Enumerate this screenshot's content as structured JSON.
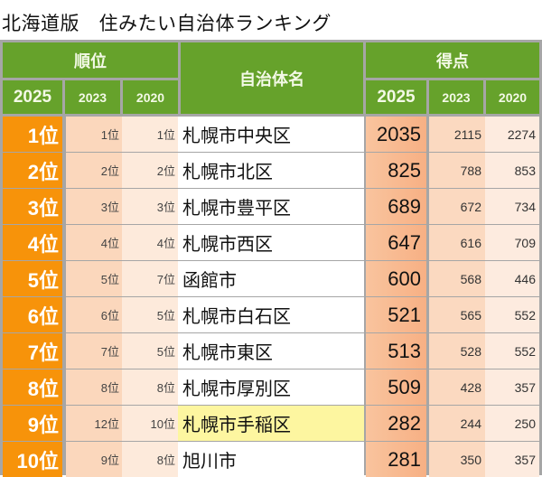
{
  "title": "北海道版　住みたい自治体ランキング",
  "header": {
    "rank_group": "順位",
    "name": "自治体名",
    "score_group": "得点",
    "rank_years": [
      "2025",
      "2023",
      "2020"
    ],
    "score_years": [
      "2025",
      "2023",
      "2020"
    ]
  },
  "rows": [
    {
      "rank": "1位",
      "rank2023": "1位",
      "rank2020": "1位",
      "name": "札幌市中央区",
      "score2025": "2035",
      "score2023": "2115",
      "score2020": "2274"
    },
    {
      "rank": "2位",
      "rank2023": "2位",
      "rank2020": "2位",
      "name": "札幌市北区",
      "score2025": "825",
      "score2023": "788",
      "score2020": "853"
    },
    {
      "rank": "3位",
      "rank2023": "3位",
      "rank2020": "3位",
      "name": "札幌市豊平区",
      "score2025": "689",
      "score2023": "672",
      "score2020": "734"
    },
    {
      "rank": "4位",
      "rank2023": "4位",
      "rank2020": "4位",
      "name": "札幌市西区",
      "score2025": "647",
      "score2023": "616",
      "score2020": "709"
    },
    {
      "rank": "5位",
      "rank2023": "5位",
      "rank2020": "7位",
      "name": "函館市",
      "score2025": "600",
      "score2023": "568",
      "score2020": "446"
    },
    {
      "rank": "6位",
      "rank2023": "6位",
      "rank2020": "5位",
      "name": "札幌市白石区",
      "score2025": "521",
      "score2023": "565",
      "score2020": "552"
    },
    {
      "rank": "7位",
      "rank2023": "7位",
      "rank2020": "5位",
      "name": "札幌市東区",
      "score2025": "513",
      "score2023": "528",
      "score2020": "552"
    },
    {
      "rank": "8位",
      "rank2023": "8位",
      "rank2020": "8位",
      "name": "札幌市厚別区",
      "score2025": "509",
      "score2023": "428",
      "score2020": "357"
    },
    {
      "rank": "9位",
      "rank2023": "12位",
      "rank2020": "10位",
      "name": "札幌市手稲区",
      "score2025": "282",
      "score2023": "244",
      "score2020": "250",
      "highlight": true
    },
    {
      "rank": "10位",
      "rank2023": "9位",
      "rank2020": "8位",
      "name": "旭川市",
      "score2025": "281",
      "score2023": "350",
      "score2020": "357"
    }
  ],
  "colors": {
    "header_green": "#66a22b",
    "rank_orange": "#f7930a",
    "highlight_yellow": "#fdf6a0"
  }
}
